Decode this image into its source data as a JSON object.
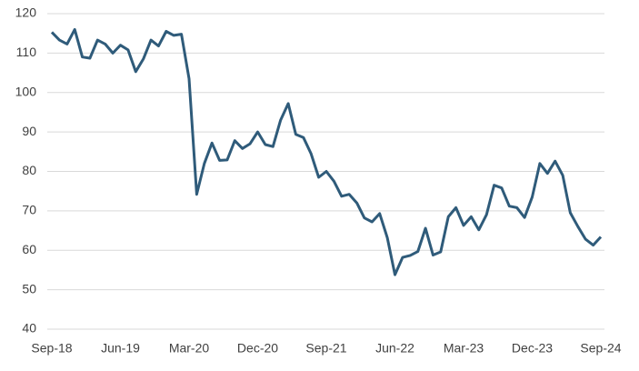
{
  "chart_data": {
    "type": "line",
    "categories": [
      "Sep-18",
      null,
      null,
      null,
      null,
      null,
      null,
      null,
      null,
      "Jun-19",
      null,
      null,
      null,
      null,
      null,
      null,
      null,
      null,
      "Mar-20",
      null,
      null,
      null,
      null,
      null,
      null,
      null,
      null,
      "Dec-20",
      null,
      null,
      null,
      null,
      null,
      null,
      null,
      null,
      "Sep-21",
      null,
      null,
      null,
      null,
      null,
      null,
      null,
      null,
      "Jun-22",
      null,
      null,
      null,
      null,
      null,
      null,
      null,
      null,
      "Mar-23",
      null,
      null,
      null,
      null,
      null,
      null,
      null,
      null,
      "Dec-23",
      null,
      null,
      null,
      null,
      null,
      null,
      null,
      null,
      "Sep-24"
    ],
    "series": [
      {
        "color": "#2f5b7a",
        "values": [
          115.3,
          113.3,
          112.3,
          116,
          109,
          108.7,
          113.3,
          112.3,
          110,
          112,
          110.8,
          105.3,
          108.5,
          113.3,
          111.8,
          115.5,
          114.5,
          114.8,
          103.5,
          74.2,
          82,
          87.2,
          82.8,
          82.9,
          87.8,
          85.8,
          87,
          90,
          86.8,
          86.3,
          93,
          97.2,
          89.4,
          88.6,
          84.5,
          78.5,
          80,
          77.5,
          73.7,
          74.2,
          72,
          68.2,
          67.2,
          69.3,
          63.2,
          53.8,
          58.2,
          58.7,
          59.7,
          65.6,
          58.8,
          59.6,
          68.5,
          70.8,
          66.3,
          68.5,
          65.2,
          69,
          76.5,
          75.8,
          71.2,
          70.8,
          68.3,
          73.5,
          82,
          79.5,
          82.6,
          79,
          69.5,
          66,
          62.8,
          61.3,
          63.4
        ]
      }
    ],
    "ylim": [
      40,
      120
    ],
    "yticks": [
      40,
      50,
      60,
      70,
      80,
      90,
      100,
      110,
      120
    ],
    "grid": true
  }
}
